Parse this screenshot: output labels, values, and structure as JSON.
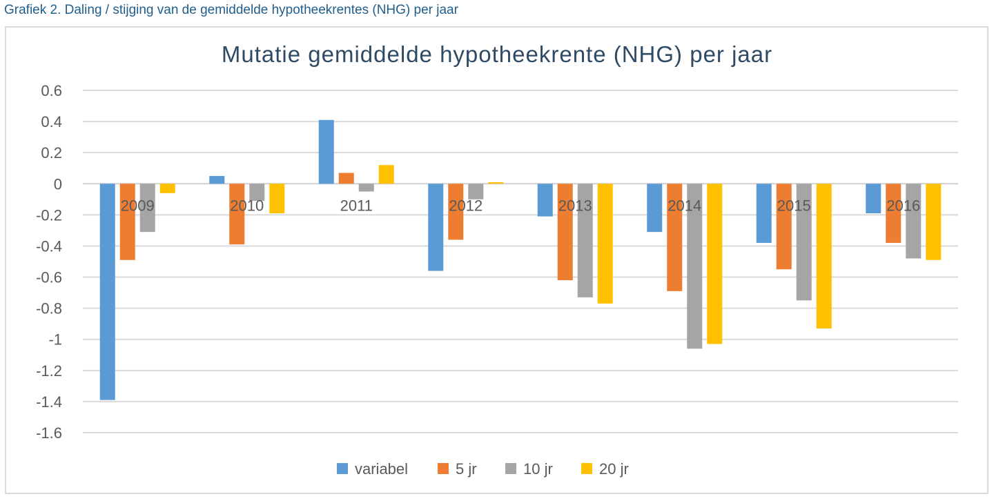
{
  "caption": "Grafiek 2. Daling / stijging van de gemiddelde hypotheekrentes (NHG) per jaar",
  "chart_data": {
    "type": "bar",
    "title": "Mutatie gemiddelde hypotheekrente (NHG) per jaar",
    "categories": [
      "2009",
      "2010",
      "2011",
      "2012",
      "2013",
      "2014",
      "2015",
      "2016"
    ],
    "ylim": [
      -1.6,
      0.6
    ],
    "yticks": [
      "0.6",
      "0.4",
      "0.2",
      "0",
      "-0.2",
      "-0.4",
      "-0.6",
      "-0.8",
      "-1",
      "-1.2",
      "-1.4",
      "-1.6"
    ],
    "grid": true,
    "legend_position": "bottom",
    "series": [
      {
        "name": "variabel",
        "color": "#5b9bd5",
        "values": [
          -1.39,
          0.05,
          0.41,
          -0.56,
          -0.21,
          -0.31,
          -0.38,
          -0.19
        ]
      },
      {
        "name": "5 jr",
        "color": "#ed7d31",
        "values": [
          -0.49,
          -0.39,
          0.07,
          -0.36,
          -0.62,
          -0.69,
          -0.55,
          -0.38
        ]
      },
      {
        "name": "10 jr",
        "color": "#a5a5a5",
        "values": [
          -0.31,
          -0.11,
          -0.05,
          -0.1,
          -0.73,
          -1.06,
          -0.75,
          -0.48
        ]
      },
      {
        "name": "20 jr",
        "color": "#ffc000",
        "values": [
          -0.06,
          -0.19,
          0.12,
          0.01,
          -0.77,
          -1.03,
          -0.93,
          -0.49
        ]
      }
    ]
  }
}
